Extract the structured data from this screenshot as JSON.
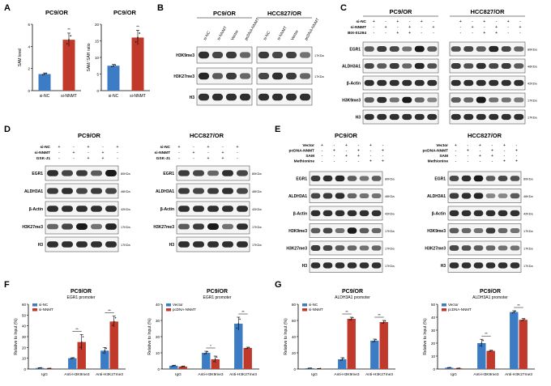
{
  "panels": {
    "A": {
      "letter": "A",
      "charts": [
        {
          "title": "PC9/OR",
          "ylabel": "SAM level",
          "categories": [
            "si-NC",
            "si-NNMT"
          ],
          "values": [
            1.5,
            4.6
          ],
          "errors": [
            0.1,
            0.6
          ],
          "ylim": [
            0,
            6
          ],
          "yticks": [
            0,
            2,
            4,
            6
          ],
          "sig": "**"
        },
        {
          "title": "PC9/OR",
          "ylabel": "SAM/ SAH ratio",
          "categories": [
            "si-NC",
            "si-NNMT"
          ],
          "values": [
            7.5,
            16
          ],
          "errors": [
            0.4,
            2.2
          ],
          "ylim": [
            0,
            20
          ],
          "yticks": [
            0,
            5,
            10,
            15,
            20
          ],
          "sig": "**"
        }
      ]
    },
    "B": {
      "letter": "B",
      "groups": [
        {
          "title": "PC9/OR",
          "lanes": [
            "si-NC",
            "si-NNMT",
            "Vector",
            "pcDNA-NNMT"
          ]
        },
        {
          "title": "HCC827/OR",
          "lanes": [
            "si-NC",
            "si-NNMT",
            "Vector",
            "pcDNA-NNMT"
          ]
        }
      ],
      "rows": [
        {
          "label": "H3K9me3",
          "kda": "17KDa",
          "pc9": [
            0.8,
            0.7,
            0.75,
            0.55
          ],
          "hcc": [
            0.75,
            0.7,
            0.72,
            0.5
          ]
        },
        {
          "label": "H3K27me3",
          "kda": "17KDa",
          "pc9": [
            0.85,
            0.6,
            0.75,
            0.55
          ],
          "hcc": [
            0.7,
            0.8,
            0.75,
            0.55
          ]
        },
        {
          "label": "H3",
          "kda": "",
          "pc9": [
            0.8,
            0.8,
            0.8,
            0.8
          ],
          "hcc": [
            0.8,
            0.8,
            0.8,
            0.8
          ]
        }
      ]
    },
    "C": {
      "letter": "C",
      "groups": [
        {
          "title": "PC9/OR"
        },
        {
          "title": "HCC827/OR"
        }
      ],
      "treatments": [
        {
          "label": "si-NC",
          "signs": [
            "+",
            "-",
            "+",
            "-",
            "+",
            "-"
          ]
        },
        {
          "label": "si-NNMT",
          "signs": [
            "-",
            "+",
            "-",
            "+",
            "-",
            "+"
          ]
        },
        {
          "label": "BIX-01294",
          "signs": [
            "-",
            "-",
            "+",
            "+",
            "-",
            "-"
          ]
        }
      ],
      "rows": [
        {
          "label": "EGR1",
          "kda": "80KDa",
          "pc9": [
            0.6,
            0.75,
            0.7,
            0.5,
            0.9,
            0.6
          ],
          "hcc": [
            0.65,
            0.7,
            0.6,
            0.85,
            0.7,
            0.55
          ]
        },
        {
          "label": "ALDH3A1",
          "kda": "46KDa",
          "pc9": [
            0.7,
            0.6,
            0.75,
            0.55,
            0.85,
            0.65
          ],
          "hcc": [
            0.75,
            0.65,
            0.8,
            0.7,
            0.75,
            0.6
          ]
        },
        {
          "label": "β-Actin",
          "kda": "42KDa",
          "pc9": [
            0.8,
            0.8,
            0.8,
            0.8,
            0.8,
            0.8
          ],
          "hcc": [
            0.8,
            0.8,
            0.8,
            0.8,
            0.8,
            0.8
          ]
        },
        {
          "label": "H3K9me3",
          "kda": "17KDa",
          "pc9": [
            0.6,
            0.8,
            0.5,
            0.9,
            0.55,
            0.4
          ],
          "hcc": [
            0.6,
            0.55,
            0.95,
            0.5,
            0.5,
            0.45
          ]
        },
        {
          "label": "H3",
          "kda": "17KDa",
          "pc9": [
            0.8,
            0.8,
            0.8,
            0.8,
            0.8,
            0.8
          ],
          "hcc": [
            0.8,
            0.8,
            0.8,
            0.8,
            0.8,
            0.8
          ]
        }
      ]
    },
    "D": {
      "letter": "D",
      "groups": [
        {
          "title": "PC9/OR"
        },
        {
          "title": "HCC827/OR"
        }
      ],
      "treatments": [
        {
          "label": "si-NC",
          "signs": [
            "+",
            "-",
            "+",
            "-",
            "+"
          ]
        },
        {
          "label": "si-NNMT",
          "signs": [
            "-",
            "+",
            "-",
            "+",
            "-"
          ]
        },
        {
          "label": "GSK-J1",
          "signs": [
            "-",
            "-",
            "+",
            "+",
            "-"
          ]
        }
      ],
      "rows": [
        {
          "label": "EGR1",
          "kda": "80KDa",
          "pc9": [
            0.8,
            0.7,
            0.75,
            0.6,
            0.9
          ],
          "hcc": [
            0.75,
            0.7,
            0.55,
            0.8,
            0.7
          ]
        },
        {
          "label": "ALDH3A1",
          "kda": "46KDa",
          "pc9": [
            0.75,
            0.8,
            0.7,
            0.75,
            0.7
          ],
          "hcc": [
            0.75,
            0.7,
            0.75,
            0.8,
            0.7
          ]
        },
        {
          "label": "β-Actin",
          "kda": "42KDa",
          "pc9": [
            0.8,
            0.8,
            0.8,
            0.8,
            0.8
          ],
          "hcc": [
            0.8,
            0.8,
            0.8,
            0.8,
            0.8
          ]
        },
        {
          "label": "H3K27me3",
          "kda": "17KDa",
          "pc9": [
            0.55,
            0.7,
            0.9,
            0.5,
            0.85
          ],
          "hcc": [
            0.6,
            0.75,
            0.9,
            0.5,
            0.8
          ]
        },
        {
          "label": "H3",
          "kda": "17KDa",
          "pc9": [
            0.8,
            0.8,
            0.8,
            0.8,
            0.8
          ],
          "hcc": [
            0.8,
            0.8,
            0.8,
            0.8,
            0.8
          ]
        }
      ]
    },
    "E": {
      "letter": "E",
      "groups": [
        {
          "title": "PC9/OR"
        },
        {
          "title": "HCC827/OR"
        }
      ],
      "treatments": [
        {
          "label": "Vector",
          "signs": [
            "+",
            "-",
            "+",
            "-",
            "+",
            "-"
          ]
        },
        {
          "label": "pcDNA-NNMT",
          "signs": [
            "-",
            "+",
            "-",
            "+",
            "-",
            "+"
          ]
        },
        {
          "label": "SAM",
          "signs": [
            "-",
            "-",
            "+",
            "+",
            "-",
            "-"
          ]
        },
        {
          "label": "Methionine",
          "signs": [
            "-",
            "-",
            "-",
            "-",
            "+",
            "+"
          ]
        }
      ],
      "rows": [
        {
          "label": "EGR1",
          "kda": "80KDa",
          "pc9": [
            0.75,
            0.8,
            0.85,
            0.6,
            0.5,
            0.6
          ],
          "hcc": [
            0.7,
            0.8,
            0.9,
            0.6,
            0.7,
            0.65
          ]
        },
        {
          "label": "ALDH3A1",
          "kda": "46KDa",
          "pc9": [
            0.7,
            0.75,
            0.8,
            0.55,
            0.5,
            0.5
          ],
          "hcc": [
            0.75,
            0.8,
            0.85,
            0.4,
            0.4,
            0.6
          ]
        },
        {
          "label": "β-Actin",
          "kda": "42KDa",
          "pc9": [
            0.8,
            0.8,
            0.8,
            0.8,
            0.8,
            0.8
          ],
          "hcc": [
            0.8,
            0.8,
            0.8,
            0.8,
            0.8,
            0.8
          ]
        },
        {
          "label": "H3K9me3",
          "kda": "17KDa",
          "pc9": [
            0.6,
            0.7,
            0.5,
            0.9,
            0.6,
            0.55
          ],
          "hcc": [
            0.6,
            0.55,
            0.5,
            0.75,
            0.55,
            0.5
          ]
        },
        {
          "label": "H3K27me3",
          "kda": "17KDa",
          "pc9": [
            0.75,
            0.7,
            0.6,
            0.55,
            0.5,
            0.55
          ],
          "hcc": [
            0.7,
            0.65,
            0.6,
            0.55,
            0.5,
            0.5
          ]
        },
        {
          "label": "H3",
          "kda": "17KDa",
          "pc9": [
            0.8,
            0.8,
            0.8,
            0.8,
            0.8,
            0.8
          ],
          "hcc": [
            0.8,
            0.8,
            0.8,
            0.8,
            0.8,
            0.8
          ]
        }
      ]
    },
    "F": {
      "letter": "F"
    },
    "G": {
      "letter": "G"
    }
  },
  "colors": {
    "blue": "#3b7cc4",
    "red": "#c0392b",
    "band": "#1a1a1a"
  },
  "chart_data": [
    {
      "type": "bar",
      "panel": "A",
      "title": "PC9/OR",
      "ylabel": "SAM level",
      "categories": [
        "si-NC",
        "si-NNMT"
      ],
      "values": [
        1.5,
        4.6
      ],
      "ylim": [
        0,
        6
      ]
    },
    {
      "type": "bar",
      "panel": "A",
      "title": "PC9/OR",
      "ylabel": "SAM/ SAH ratio",
      "categories": [
        "si-NC",
        "si-NNMT"
      ],
      "values": [
        7.5,
        16
      ],
      "ylim": [
        0,
        20
      ]
    },
    {
      "type": "bar",
      "panel": "F",
      "title": "PC9/OR",
      "subtitle": "EGR1 promoter",
      "ylabel": "Relative to Input (%)",
      "categories": [
        "IgG",
        "Anti-H3K9me3",
        "Anti-H3K27me3"
      ],
      "ylim": [
        0,
        60
      ],
      "yticks": [
        0,
        10,
        20,
        30,
        40,
        50,
        60
      ],
      "series": [
        {
          "name": "si-NC",
          "values": [
            1,
            10,
            17
          ],
          "errors": [
            0.3,
            0.5,
            3
          ]
        },
        {
          "name": "si-NNMT",
          "values": [
            0.5,
            25,
            44
          ],
          "errors": [
            0.2,
            7,
            5
          ]
        }
      ],
      "sig": [
        "",
        "**",
        "**"
      ]
    },
    {
      "type": "bar",
      "panel": "F",
      "title": "PC9/OR",
      "subtitle": "EGR1 promoter",
      "ylabel": "Relative to Input (%)",
      "categories": [
        "IgG",
        "Anti-H3K9me3",
        "Anti-H3K27me3"
      ],
      "ylim": [
        0,
        40
      ],
      "yticks": [
        0,
        10,
        20,
        30,
        40
      ],
      "series": [
        {
          "name": "Vector",
          "values": [
            2,
            10,
            28
          ],
          "errors": [
            0.3,
            1,
            4
          ]
        },
        {
          "name": "pcDNA-NNMT",
          "values": [
            1.5,
            6,
            13
          ],
          "errors": [
            0.3,
            2,
            0.5
          ]
        }
      ],
      "sig": [
        "",
        "*",
        "**"
      ]
    },
    {
      "type": "bar",
      "panel": "G",
      "title": "PC9/OR",
      "subtitle": "ALDH3A1 promoter",
      "ylabel": "Relative to Input (%)",
      "categories": [
        "IgG",
        "Anti-H3K9me3",
        "Anti-H3K27me3"
      ],
      "ylim": [
        0,
        80
      ],
      "yticks": [
        0,
        20,
        40,
        60,
        80
      ],
      "series": [
        {
          "name": "si-NC",
          "values": [
            1,
            12,
            35
          ],
          "errors": [
            0.2,
            2,
            2
          ]
        },
        {
          "name": "si-NNMT",
          "values": [
            0.5,
            62,
            58
          ],
          "errors": [
            0.2,
            2,
            2
          ]
        }
      ],
      "sig": [
        "",
        "**",
        "**"
      ]
    },
    {
      "type": "bar",
      "panel": "G",
      "title": "PC9/OR",
      "subtitle": "ALDH3A1 promoter",
      "ylabel": "Relative to Input (%)",
      "categories": [
        "IgG",
        "Anti-H3K9me3",
        "Anti-H3K27me3"
      ],
      "ylim": [
        0,
        50
      ],
      "yticks": [
        0,
        10,
        20,
        30,
        40,
        50
      ],
      "series": [
        {
          "name": "Vector",
          "values": [
            1,
            20,
            44
          ],
          "errors": [
            0.2,
            3,
            1
          ]
        },
        {
          "name": "pcDNA-NNMT",
          "values": [
            0.5,
            14,
            38
          ],
          "errors": [
            0.2,
            0.5,
            1
          ]
        }
      ],
      "sig": [
        "",
        "**",
        "**"
      ]
    }
  ]
}
